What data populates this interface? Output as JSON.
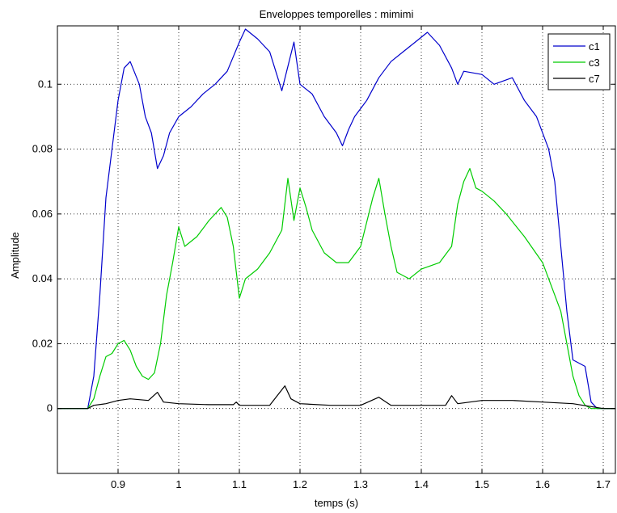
{
  "chart_data": {
    "type": "line",
    "title": "Enveloppes temporelles : mimimi",
    "xlabel": "temps (s)",
    "ylabel": "Amplitude",
    "xlim": [
      0.8,
      1.72
    ],
    "ylim": [
      -0.02,
      0.118
    ],
    "x_ticks": [
      0.9,
      1.0,
      1.1,
      1.2,
      1.3,
      1.4,
      1.5,
      1.6,
      1.7
    ],
    "x_tick_labels": [
      "0.9",
      "1",
      "1.1",
      "1.2",
      "1.3",
      "1.4",
      "1.5",
      "1.6",
      "1.7"
    ],
    "y_ticks": [
      0,
      0.02,
      0.04,
      0.06,
      0.08,
      0.1
    ],
    "y_tick_labels": [
      "0",
      "0.02",
      "0.04",
      "0.06",
      "0.08",
      "0.1"
    ],
    "grid": true,
    "legend_position": "top-right",
    "series": [
      {
        "name": "c1",
        "color": "#0000cc",
        "points": [
          [
            0.8,
            0
          ],
          [
            0.85,
            0
          ],
          [
            0.86,
            0.01
          ],
          [
            0.87,
            0.035
          ],
          [
            0.88,
            0.065
          ],
          [
            0.89,
            0.08
          ],
          [
            0.9,
            0.095
          ],
          [
            0.91,
            0.105
          ],
          [
            0.92,
            0.107
          ],
          [
            0.935,
            0.1
          ],
          [
            0.945,
            0.09
          ],
          [
            0.955,
            0.085
          ],
          [
            0.965,
            0.074
          ],
          [
            0.975,
            0.078
          ],
          [
            0.985,
            0.085
          ],
          [
            1.0,
            0.09
          ],
          [
            1.02,
            0.093
          ],
          [
            1.04,
            0.097
          ],
          [
            1.06,
            0.1
          ],
          [
            1.08,
            0.104
          ],
          [
            1.1,
            0.113
          ],
          [
            1.11,
            0.117
          ],
          [
            1.13,
            0.114
          ],
          [
            1.15,
            0.11
          ],
          [
            1.17,
            0.098
          ],
          [
            1.19,
            0.113
          ],
          [
            1.2,
            0.1
          ],
          [
            1.22,
            0.097
          ],
          [
            1.24,
            0.09
          ],
          [
            1.26,
            0.085
          ],
          [
            1.27,
            0.081
          ],
          [
            1.28,
            0.086
          ],
          [
            1.29,
            0.09
          ],
          [
            1.31,
            0.095
          ],
          [
            1.33,
            0.102
          ],
          [
            1.35,
            0.107
          ],
          [
            1.37,
            0.11
          ],
          [
            1.39,
            0.113
          ],
          [
            1.41,
            0.116
          ],
          [
            1.43,
            0.112
          ],
          [
            1.45,
            0.105
          ],
          [
            1.46,
            0.1
          ],
          [
            1.47,
            0.104
          ],
          [
            1.5,
            0.103
          ],
          [
            1.52,
            0.1
          ],
          [
            1.55,
            0.102
          ],
          [
            1.57,
            0.095
          ],
          [
            1.59,
            0.09
          ],
          [
            1.61,
            0.08
          ],
          [
            1.62,
            0.07
          ],
          [
            1.63,
            0.05
          ],
          [
            1.64,
            0.03
          ],
          [
            1.65,
            0.015
          ],
          [
            1.66,
            0.014
          ],
          [
            1.67,
            0.013
          ],
          [
            1.68,
            0.002
          ],
          [
            1.69,
            0
          ],
          [
            1.72,
            0
          ]
        ]
      },
      {
        "name": "c3",
        "color": "#00cc00",
        "points": [
          [
            0.8,
            0
          ],
          [
            0.85,
            0
          ],
          [
            0.86,
            0.003
          ],
          [
            0.87,
            0.01
          ],
          [
            0.88,
            0.016
          ],
          [
            0.89,
            0.017
          ],
          [
            0.9,
            0.02
          ],
          [
            0.91,
            0.021
          ],
          [
            0.92,
            0.018
          ],
          [
            0.93,
            0.013
          ],
          [
            0.94,
            0.01
          ],
          [
            0.95,
            0.009
          ],
          [
            0.96,
            0.011
          ],
          [
            0.97,
            0.02
          ],
          [
            0.98,
            0.035
          ],
          [
            0.99,
            0.045
          ],
          [
            1.0,
            0.056
          ],
          [
            1.01,
            0.05
          ],
          [
            1.03,
            0.053
          ],
          [
            1.05,
            0.058
          ],
          [
            1.07,
            0.062
          ],
          [
            1.08,
            0.059
          ],
          [
            1.09,
            0.05
          ],
          [
            1.1,
            0.034
          ],
          [
            1.11,
            0.04
          ],
          [
            1.13,
            0.043
          ],
          [
            1.15,
            0.048
          ],
          [
            1.17,
            0.055
          ],
          [
            1.18,
            0.071
          ],
          [
            1.19,
            0.058
          ],
          [
            1.2,
            0.068
          ],
          [
            1.21,
            0.062
          ],
          [
            1.22,
            0.055
          ],
          [
            1.24,
            0.048
          ],
          [
            1.26,
            0.045
          ],
          [
            1.28,
            0.045
          ],
          [
            1.3,
            0.05
          ],
          [
            1.32,
            0.065
          ],
          [
            1.33,
            0.071
          ],
          [
            1.34,
            0.06
          ],
          [
            1.35,
            0.05
          ],
          [
            1.36,
            0.042
          ],
          [
            1.38,
            0.04
          ],
          [
            1.4,
            0.043
          ],
          [
            1.43,
            0.045
          ],
          [
            1.45,
            0.05
          ],
          [
            1.46,
            0.063
          ],
          [
            1.47,
            0.07
          ],
          [
            1.48,
            0.074
          ],
          [
            1.49,
            0.068
          ],
          [
            1.5,
            0.067
          ],
          [
            1.52,
            0.064
          ],
          [
            1.54,
            0.06
          ],
          [
            1.57,
            0.053
          ],
          [
            1.6,
            0.045
          ],
          [
            1.62,
            0.035
          ],
          [
            1.63,
            0.03
          ],
          [
            1.64,
            0.02
          ],
          [
            1.65,
            0.01
          ],
          [
            1.66,
            0.004
          ],
          [
            1.67,
            0.001
          ],
          [
            1.68,
            0
          ],
          [
            1.72,
            0
          ]
        ]
      },
      {
        "name": "c7",
        "color": "#000000",
        "points": [
          [
            0.8,
            0
          ],
          [
            0.85,
            0
          ],
          [
            0.86,
            0.001
          ],
          [
            0.88,
            0.0015
          ],
          [
            0.9,
            0.0025
          ],
          [
            0.92,
            0.003
          ],
          [
            0.95,
            0.0025
          ],
          [
            0.965,
            0.005
          ],
          [
            0.975,
            0.002
          ],
          [
            1.0,
            0.0015
          ],
          [
            1.05,
            0.0012
          ],
          [
            1.09,
            0.0012
          ],
          [
            1.095,
            0.002
          ],
          [
            1.1,
            0.001
          ],
          [
            1.15,
            0.001
          ],
          [
            1.175,
            0.007
          ],
          [
            1.185,
            0.003
          ],
          [
            1.2,
            0.0015
          ],
          [
            1.25,
            0.001
          ],
          [
            1.3,
            0.001
          ],
          [
            1.33,
            0.0035
          ],
          [
            1.35,
            0.001
          ],
          [
            1.4,
            0.001
          ],
          [
            1.44,
            0.001
          ],
          [
            1.45,
            0.004
          ],
          [
            1.46,
            0.0015
          ],
          [
            1.5,
            0.0025
          ],
          [
            1.55,
            0.0025
          ],
          [
            1.6,
            0.002
          ],
          [
            1.65,
            0.0015
          ],
          [
            1.7,
            0
          ],
          [
            1.72,
            0
          ]
        ]
      }
    ]
  }
}
